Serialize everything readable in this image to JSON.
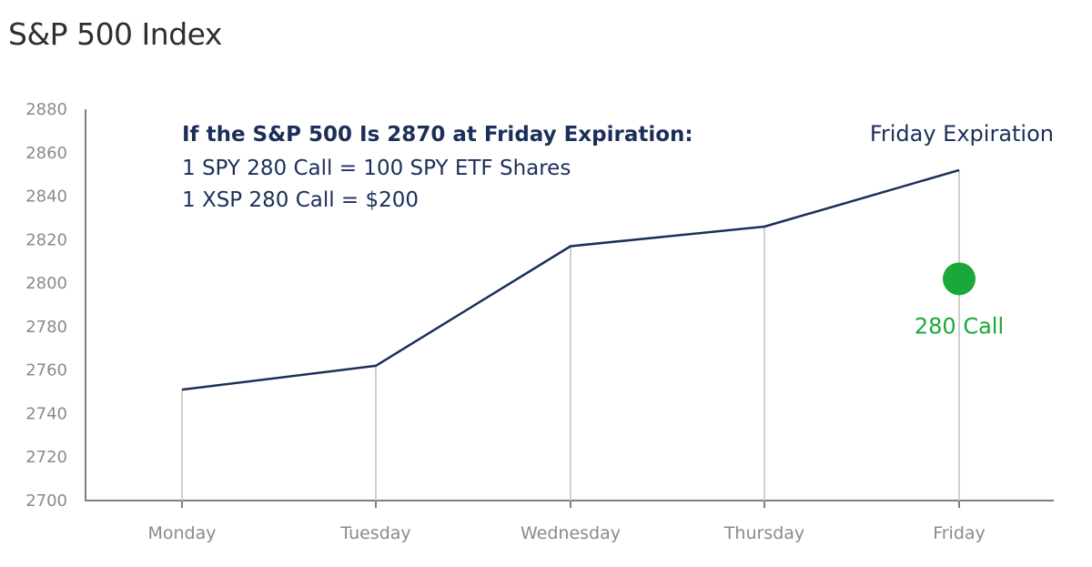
{
  "page_title": "S&P 500 Index",
  "chart_data": {
    "type": "line",
    "categories": [
      "Monday",
      "Tuesday",
      "Wednesday",
      "Thursday",
      "Friday"
    ],
    "series": [
      {
        "values": [
          2751,
          2762,
          2817,
          2826,
          2852
        ]
      }
    ],
    "ylim": [
      2700,
      2880
    ],
    "yticks": [
      2880,
      2860,
      2840,
      2820,
      2800,
      2780,
      2760,
      2740,
      2720,
      2700
    ],
    "grid": false,
    "annotation": {
      "title": "If the S&P 500 Is 2870 at Friday Expiration:",
      "lines": [
        "1 SPY 280 Call = 100 SPY ETF Shares",
        "1 XSP 280 Call = $200"
      ]
    },
    "expiration_label": "Friday Expiration",
    "marker": {
      "label": "280 Call",
      "category": "Friday",
      "value": 2802
    }
  },
  "colors": {
    "line": "#1b2f5a",
    "marker": "#1aa83a",
    "axis": "#7f7f7f",
    "droplines": "#cfcfcf",
    "tick_text": "#8a8a8a"
  }
}
